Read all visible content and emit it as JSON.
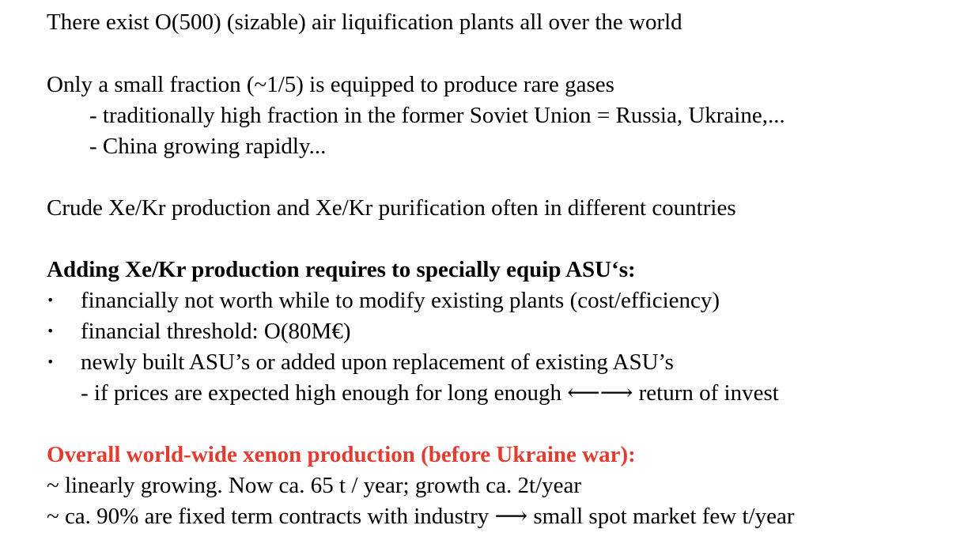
{
  "block1": {
    "line1": "There exist O(500) (sizable) air liquification plants all over the world"
  },
  "block2": {
    "line1": "Only a small fraction (~1/5) is equipped to produce rare gases",
    "sub1": "- traditionally high fraction in the former Soviet Union = Russia, Ukraine,...",
    "sub2": "- China growing rapidly..."
  },
  "block3": {
    "line1": "Crude Xe/Kr production and Xe/Kr purification often in different countries"
  },
  "block4": {
    "heading": "Adding Xe/Kr production requires to specially equip ASU‘s:",
    "bullet_char": "•",
    "bullets": [
      "financially not worth while to modify existing plants (cost/efficiency)",
      "financial threshold: O(80M€)",
      "newly built ASU’s or added upon replacement of existing ASU’s"
    ],
    "sub": "- if prices are expected high enough for long enough ⟵⟶ return of invest"
  },
  "block5": {
    "heading": "Overall world-wide xenon production (before Ukraine war):",
    "line1": "~ linearly growing. Now ca. 65 t / year; growth ca. 2t/year",
    "line2": "~ ca. 90% are fixed term contracts with industry ⟶ small spot market few t/year"
  },
  "colors": {
    "text": "#000000",
    "highlight_red": "#e23b30",
    "background": "#ffffff"
  }
}
